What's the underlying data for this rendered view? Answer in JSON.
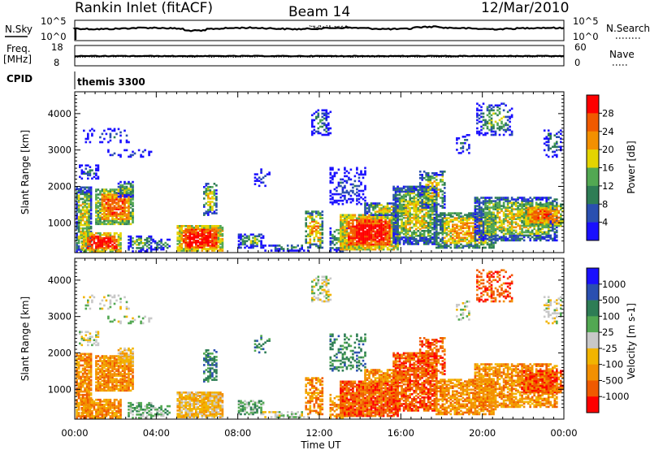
{
  "header": {
    "station": "Rankin Inlet (fitACF)",
    "beam": "Beam 14",
    "date": "12/Mar/2010"
  },
  "top_panels": {
    "nsky_label": "N.Sky",
    "nsearch_label": "N.Search",
    "nsky_ticks": [
      "10^5",
      "10^0"
    ],
    "nsearch_ticks": [
      "10^5",
      "10^0"
    ],
    "freq_label": "Freq.",
    "freq_unit": "[MHz]",
    "freq_ticks": [
      "18",
      "8"
    ],
    "nave_label": "Nave",
    "nave_ticks": [
      "60",
      "0"
    ],
    "cpid_label": "CPID",
    "cpid_value": "themis 3300"
  },
  "colors": {
    "power": [
      "#1a10ff",
      "#2a4fb0",
      "#2e7d55",
      "#52a852",
      "#e4d400",
      "#f39000",
      "#f05a00",
      "#ff0000"
    ],
    "velocity": [
      "#ff0000",
      "#f05a00",
      "#f39000",
      "#f2b400",
      "#c8c8c8",
      "#52a852",
      "#2e7d55",
      "#2a4fb0",
      "#1a10ff"
    ]
  },
  "chart_data": [
    {
      "type": "heatmap",
      "name": "power",
      "ylabel": "Slant Range [km]",
      "yticks": [
        1000,
        2000,
        3000,
        4000
      ],
      "ylim": [
        180,
        4600
      ],
      "xlim_hours": [
        0,
        24
      ],
      "colorbar_label": "Power [dB]",
      "colorbar_ticks": [
        "4",
        "8",
        "12",
        "16",
        "20",
        "24",
        "28"
      ],
      "colorbar_range": [
        0,
        30
      ]
    },
    {
      "type": "heatmap",
      "name": "velocity",
      "ylabel": "Slant Range [km]",
      "yticks": [
        1000,
        2000,
        3000,
        4000
      ],
      "ylim": [
        180,
        4600
      ],
      "xlim_hours": [
        0,
        24
      ],
      "colorbar_label": "Velocity [m s-1]",
      "colorbar_ticks": [
        "1000",
        "500",
        "100",
        "25",
        "-25",
        "-100",
        "-500",
        "-1000"
      ]
    }
  ],
  "xaxis": {
    "ticks": [
      "00:00",
      "04:00",
      "08:00",
      "12:00",
      "16:00",
      "20:00",
      "00:00"
    ],
    "label": "Time UT"
  }
}
